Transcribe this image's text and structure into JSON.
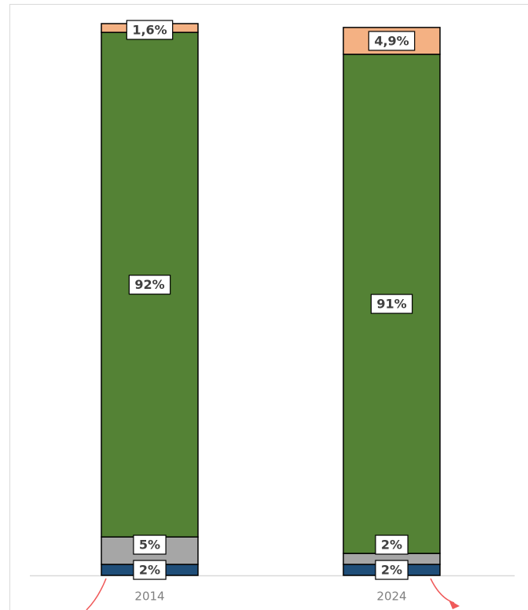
{
  "chart_data": {
    "type": "stacked-bar",
    "categories": [
      "2014",
      "2024"
    ],
    "series": [
      {
        "color": "#1f4e79",
        "values": [
          2,
          2
        ],
        "value_labels": [
          "2%",
          "2%"
        ]
      },
      {
        "color": "#a6a6a6",
        "values": [
          5,
          2
        ],
        "value_labels": [
          "5%",
          "2%"
        ]
      },
      {
        "color": "#548235",
        "values": [
          92,
          91
        ],
        "value_labels": [
          "92%",
          "91%"
        ]
      },
      {
        "color": "#f4b183",
        "values": [
          1.6,
          4.9
        ],
        "value_labels": [
          "1,6%",
          "4,9%"
        ]
      }
    ]
  }
}
